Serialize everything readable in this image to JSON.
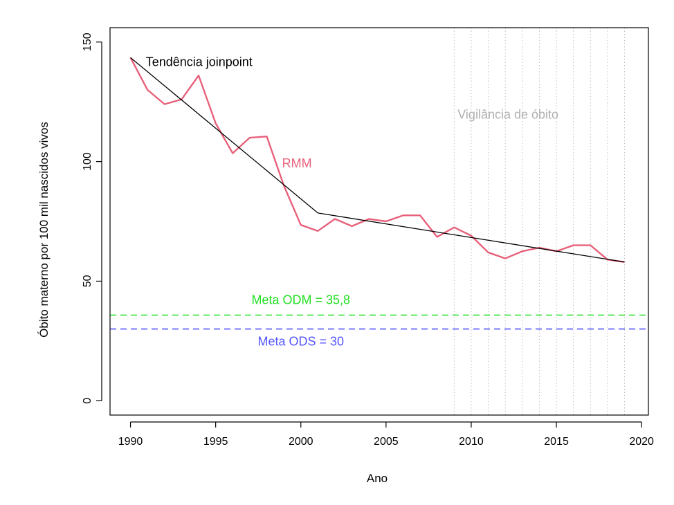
{
  "chart_data": {
    "type": "line",
    "xlabel": "Ano",
    "ylabel": "Óbito materno por 100 mil nascidos vivos",
    "xlim": [
      1988.8,
      2020.4
    ],
    "ylim": [
      -6,
      156
    ],
    "xticks": [
      1990,
      1995,
      2000,
      2005,
      2010,
      2015,
      2020
    ],
    "yticks": [
      0,
      50,
      100,
      150
    ],
    "grid": false,
    "series": [
      {
        "name": "RMM",
        "color": "#e8607a",
        "x": [
          1990,
          1991,
          1992,
          1993,
          1994,
          1995,
          1996,
          1997,
          1998,
          1999,
          2000,
          2001,
          2002,
          2003,
          2004,
          2005,
          2006,
          2007,
          2008,
          2009,
          2010,
          2011,
          2012,
          2013,
          2014,
          2015,
          2016,
          2017,
          2018,
          2019
        ],
        "y": [
          143.5,
          130,
          124,
          126,
          136,
          116,
          103.5,
          110,
          110.5,
          90,
          73.5,
          71,
          76,
          73,
          76,
          75,
          77.5,
          77.5,
          68.5,
          72.5,
          69,
          62,
          59.5,
          62.5,
          64,
          62.5,
          65,
          65,
          59,
          58
        ]
      },
      {
        "name": "Tendência joinpoint",
        "color": "#000000",
        "x": [
          1990,
          2001,
          2019
        ],
        "y": [
          143.5,
          78.5,
          58
        ]
      }
    ],
    "reference_lines": [
      {
        "label": "Meta ODM = 35,8",
        "value": 35.8,
        "color": "#22e022"
      },
      {
        "label": "Meta ODS = 30",
        "value": 30,
        "color": "#5555ff"
      }
    ],
    "shaded_period": {
      "label": "Vigilância de óbito",
      "from": 2009,
      "to": 2019,
      "color": "#bdbdbd",
      "label_color": "#b0b0b0"
    }
  }
}
